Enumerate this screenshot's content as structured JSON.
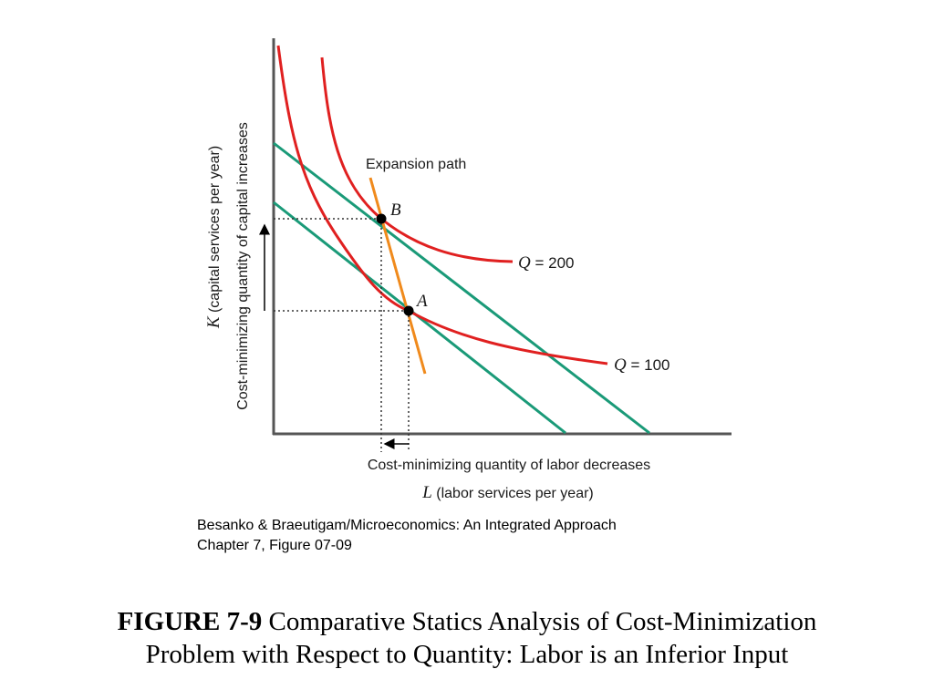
{
  "diagram": {
    "y_axis_label_var": "K",
    "y_axis_label_rest": " (capital services per year)",
    "y_axis_note": "Cost-minimizing quantity of capital increases",
    "x_axis_label_var": "L",
    "x_axis_label_rest": " (labor services per year)",
    "x_axis_note": "Cost-minimizing quantity of labor decreases",
    "expansion_path_label": "Expansion path",
    "point_a_label": "A",
    "point_b_label": "B",
    "isoquant_200_var": "Q",
    "isoquant_200_rest": " = 200",
    "isoquant_100_var": "Q",
    "isoquant_100_rest": " = 100",
    "colors": {
      "isoquant": "#e02020",
      "isocost": "#1a9a78",
      "expansion_path": "#f08a1c",
      "axis": "#555555"
    }
  },
  "source": {
    "line1": "Besanko & Braeutigam/Microeconomics: An Integrated Approach",
    "line2": "Chapter 7, Figure 07-09"
  },
  "caption": {
    "figure_number": "FIGURE 7-9",
    "title_line1": " Comparative Statics Analysis of Cost-Minimization",
    "title_line2": "Problem with Respect to Quantity: Labor is an Inferior Input"
  }
}
